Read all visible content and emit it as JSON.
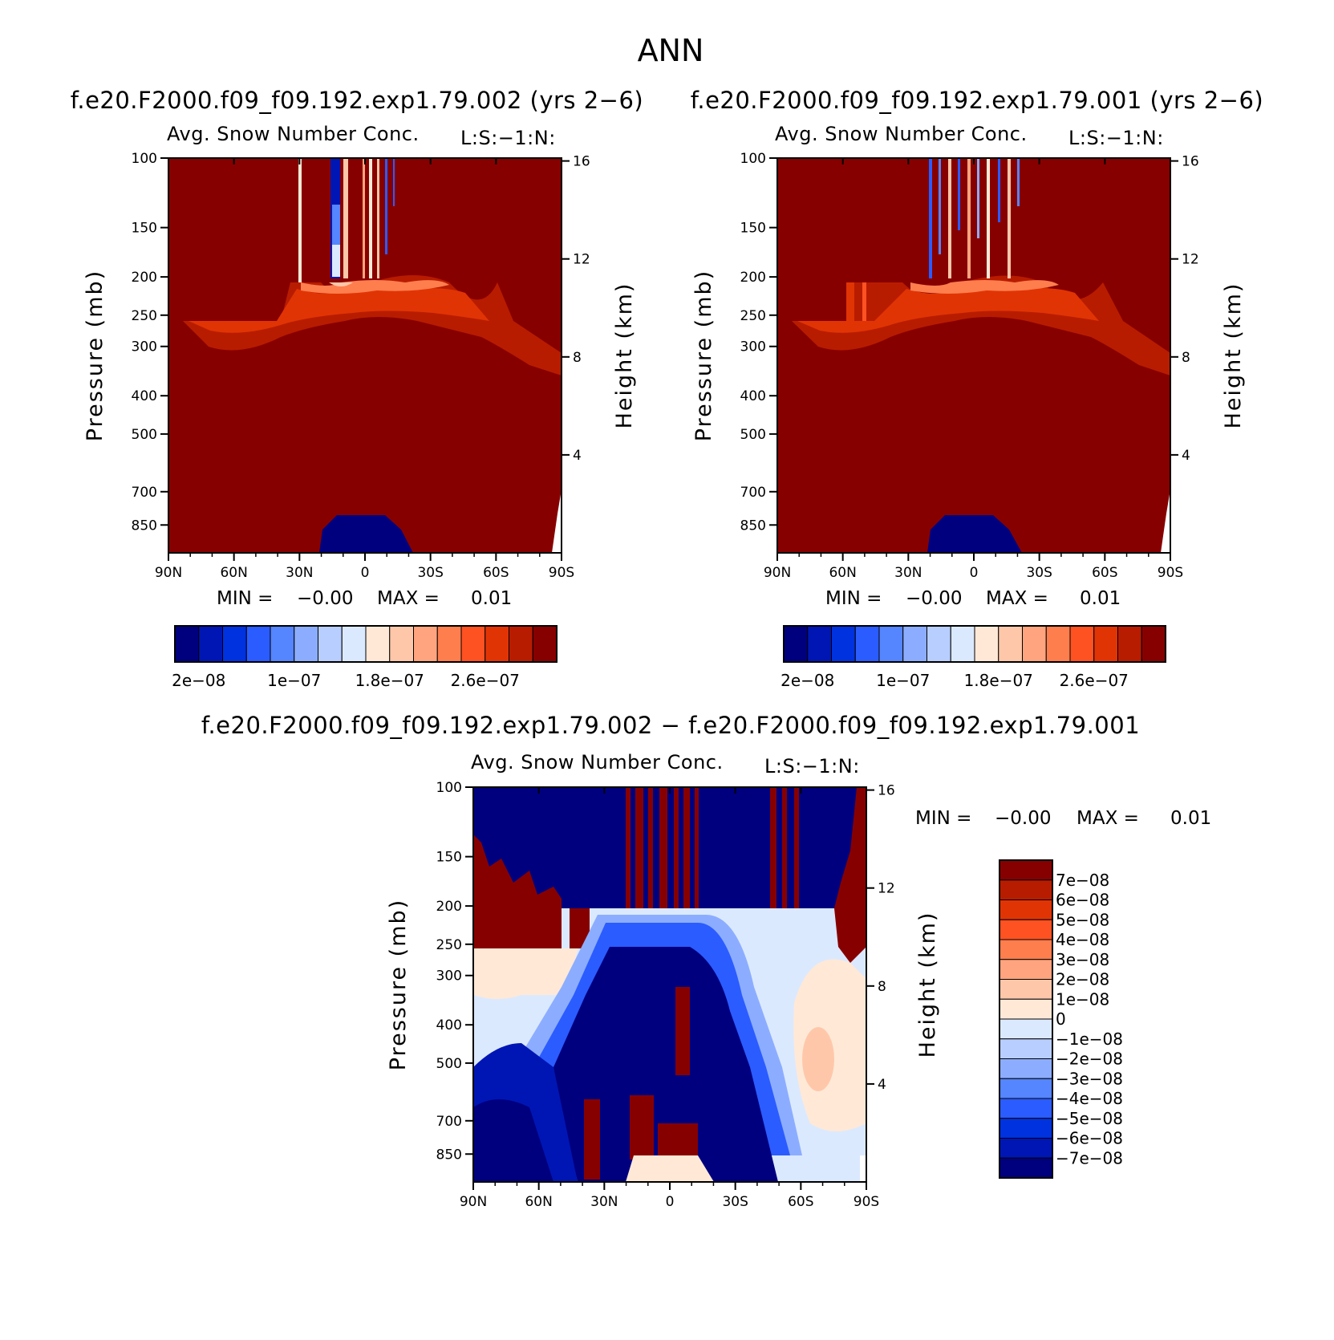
{
  "page_title": "ANN",
  "chart_data": [
    {
      "type": "heatmap",
      "id": "panel1",
      "case_title": "f.e20.F2000.f09_f09.192.exp1.79.002 (yrs 2−6)",
      "title": "Avg. Snow Number Conc.",
      "units_label": "L:S:−1:N:",
      "ylabel": "Pressure (mb)",
      "y2label": "Height (km)",
      "x_ticks": [
        "90N",
        "60N",
        "30N",
        "0",
        "30S",
        "60S",
        "90S"
      ],
      "y_ticks": [
        100,
        150,
        200,
        250,
        300,
        400,
        500,
        700,
        850
      ],
      "y2_ticks": [
        16,
        12,
        8,
        4
      ],
      "ylim": [
        100,
        1000
      ],
      "y_scale": "log",
      "min_label": "MIN =",
      "min_value": "−0.00",
      "max_label": "MAX =",
      "max_value": "0.01",
      "colorbar_labels": [
        "2e−08",
        "1e−07",
        "1.8e−07",
        "2.6e−07"
      ]
    },
    {
      "type": "heatmap",
      "id": "panel2",
      "case_title": "f.e20.F2000.f09_f09.192.exp1.79.001 (yrs 2−6)",
      "title": "Avg. Snow Number Conc.",
      "units_label": "L:S:−1:N:",
      "ylabel": "Pressure (mb)",
      "y2label": "Height (km)",
      "x_ticks": [
        "90N",
        "60N",
        "30N",
        "0",
        "30S",
        "60S",
        "90S"
      ],
      "y_ticks": [
        100,
        150,
        200,
        250,
        300,
        400,
        500,
        700,
        850
      ],
      "y2_ticks": [
        16,
        12,
        8,
        4
      ],
      "ylim": [
        100,
        1000
      ],
      "y_scale": "log",
      "min_label": "MIN =",
      "min_value": "−0.00",
      "max_label": "MAX =",
      "max_value": "0.01",
      "colorbar_labels": [
        "2e−08",
        "1e−07",
        "1.8e−07",
        "2.6e−07"
      ]
    },
    {
      "type": "heatmap",
      "id": "panel3",
      "case_title": "f.e20.F2000.f09_f09.192.exp1.79.002 − f.e20.F2000.f09_f09.192.exp1.79.001",
      "title": "Avg. Snow Number Conc.",
      "units_label": "L:S:−1:N:",
      "ylabel": "Pressure (mb)",
      "y2label": "Height (km)",
      "x_ticks": [
        "90N",
        "60N",
        "30N",
        "0",
        "30S",
        "60S",
        "90S"
      ],
      "y_ticks": [
        100,
        150,
        200,
        250,
        300,
        400,
        500,
        700,
        850
      ],
      "y2_ticks": [
        16,
        12,
        8,
        4
      ],
      "ylim": [
        100,
        1000
      ],
      "y_scale": "log",
      "min_label": "MIN =",
      "min_value": "−0.00",
      "max_label": "MAX =",
      "max_value": "0.01",
      "colorbar_labels": [
        "7e−08",
        "6e−08",
        "5e−08",
        "4e−08",
        "3e−08",
        "2e−08",
        "1e−08",
        "0",
        "−1e−08",
        "−2e−08",
        "−3e−08",
        "−4e−08",
        "−5e−08",
        "−6e−08",
        "−7e−08"
      ]
    }
  ],
  "palettes": {
    "abs": [
      "#00007f",
      "#0016b4",
      "#0032e0",
      "#2b5cff",
      "#5585ff",
      "#8cadff",
      "#b8ceff",
      "#dbe9ff",
      "#ffe9d6",
      "#ffc7aa",
      "#ffa47e",
      "#ff7e4e",
      "#ff5222",
      "#e13404",
      "#b81c00",
      "#870000"
    ],
    "diff": [
      "#00007f",
      "#0016b4",
      "#0032e0",
      "#2b5cff",
      "#5585ff",
      "#8cadff",
      "#b8ceff",
      "#dbe9ff",
      "#ffe9d6",
      "#ffc7aa",
      "#ffa47e",
      "#ff7e4e",
      "#ff5222",
      "#e13404",
      "#b81c00",
      "#870000"
    ]
  }
}
